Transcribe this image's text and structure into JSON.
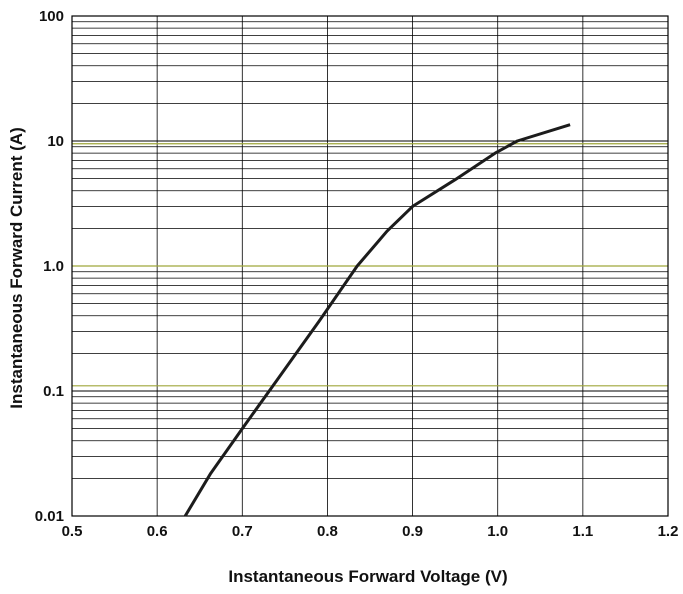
{
  "chart_data": {
    "type": "line",
    "title": "",
    "xlabel": "Instantaneous Forward Voltage (V)",
    "ylabel": "Instantaneous Forward Current (A)",
    "xlim": [
      0.5,
      1.2
    ],
    "ylim": [
      0.01,
      100
    ],
    "y_scale": "log",
    "grid": true,
    "x_ticks": [
      {
        "value": 0.5,
        "label": "0.5"
      },
      {
        "value": 0.6,
        "label": "0.6"
      },
      {
        "value": 0.7,
        "label": "0.7"
      },
      {
        "value": 0.8,
        "label": "0.8"
      },
      {
        "value": 0.9,
        "label": "0.9"
      },
      {
        "value": 1.0,
        "label": "1.0"
      },
      {
        "value": 1.1,
        "label": "1.1"
      },
      {
        "value": 1.2,
        "label": "1.2"
      }
    ],
    "y_ticks": [
      {
        "value": 0.01,
        "label": "0.01"
      },
      {
        "value": 0.1,
        "label": "0.1"
      },
      {
        "value": 1,
        "label": "1.0"
      },
      {
        "value": 10,
        "label": "10"
      },
      {
        "value": 100,
        "label": "100"
      }
    ],
    "series": [
      {
        "x": [
          0.633,
          0.663,
          0.7,
          0.74,
          0.79,
          0.835,
          0.87,
          0.9,
          0.95,
          0.997,
          1.023,
          1.085
        ],
        "y": [
          0.01,
          0.022,
          0.05,
          0.12,
          0.36,
          1.0,
          1.9,
          3.0,
          4.9,
          8.0,
          10.0,
          13.5
        ]
      }
    ],
    "colors": {
      "line": "#1c1c1c",
      "grid": "#000000",
      "decade_grid": "#9fa63a"
    }
  }
}
